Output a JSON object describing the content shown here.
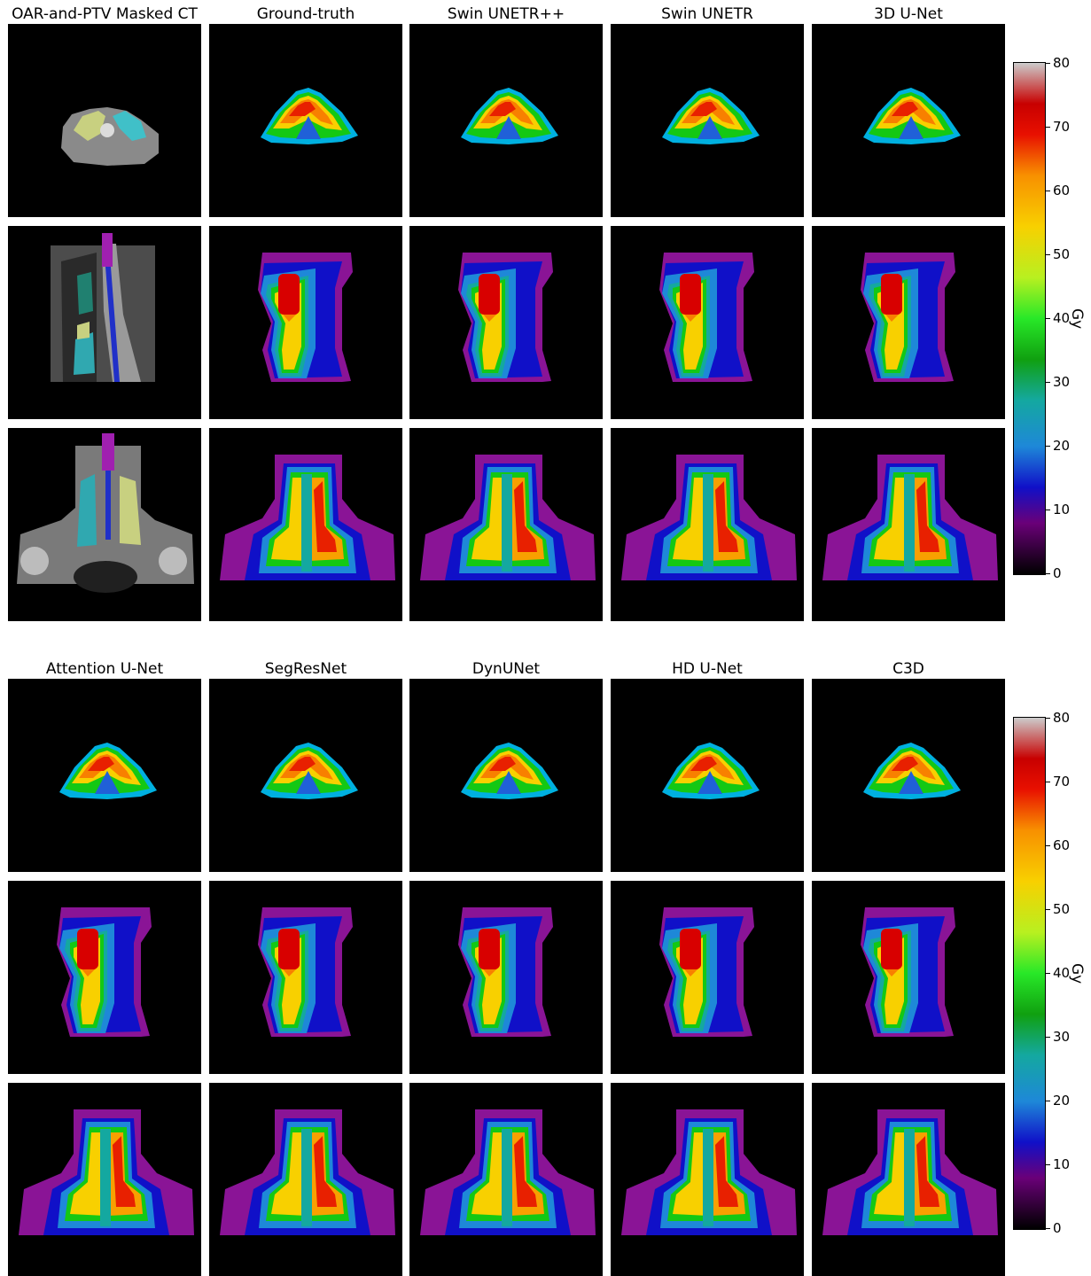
{
  "figure_a": {
    "columns": [
      "OAR-and-PTV Masked CT",
      "Ground-truth",
      "Swin UNETR++",
      "Swin UNETR",
      "3D U-Net"
    ]
  },
  "figure_b": {
    "columns": [
      "Attention U-Net",
      "SegResNet",
      "DynUNet",
      "HD U-Net",
      "C3D"
    ]
  },
  "colorbar": {
    "label": "Gy",
    "ticks": [
      "80",
      "70",
      "60",
      "50",
      "40",
      "30",
      "20",
      "10",
      "0"
    ],
    "range": [
      0,
      80
    ],
    "colormap": [
      "#000000",
      "#6a0078",
      "#1010c8",
      "#1e88d8",
      "#14a8a0",
      "#10a010",
      "#28e828",
      "#b8f020",
      "#f8d000",
      "#f89000",
      "#e81000",
      "#c80000",
      "#cccccc"
    ]
  },
  "views": [
    "axial",
    "sagittal",
    "coronal"
  ]
}
